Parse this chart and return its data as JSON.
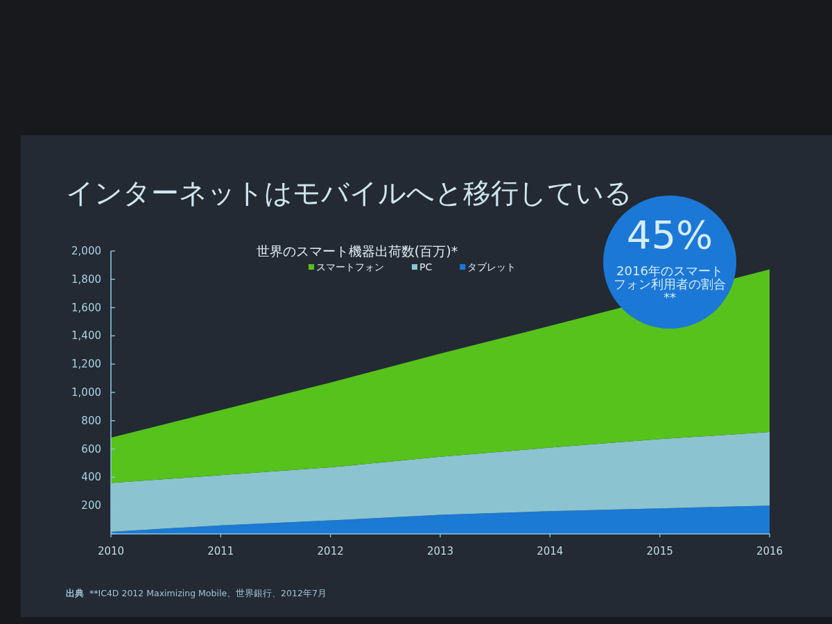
{
  "chart_data": {
    "type": "area",
    "title": "インターネットはモバイルへと移行している",
    "subtitle": "世界のスマート機器出荷数(百万)*",
    "x": [
      2010,
      2011,
      2012,
      2013,
      2014,
      2015,
      2016
    ],
    "xlim": [
      2010,
      2016
    ],
    "xticks": [
      2010,
      2011,
      2012,
      2013,
      2014,
      2015,
      2016
    ],
    "ylim": [
      0,
      2000
    ],
    "yticks": [
      {
        "value": 0,
        "label": null
      },
      200,
      400,
      600,
      800,
      {
        "value": 1000,
        "label": "1,000"
      },
      {
        "value": 1200,
        "label": "1,200"
      },
      {
        "value": 1400,
        "label": "1,400"
      },
      {
        "value": 1600,
        "label": "1,600"
      },
      {
        "value": 1800,
        "label": "1,800"
      },
      {
        "value": 2000,
        "label": "2,000"
      }
    ],
    "stacked": true,
    "legend": "top",
    "series": [
      {
        "name": "タブレット",
        "color": "#1a7ad4",
        "values": [
          15,
          60,
          95,
          135,
          160,
          180,
          200
        ]
      },
      {
        "name": "PC",
        "color": "#8bc3d1",
        "values": [
          345,
          355,
          375,
          410,
          450,
          490,
          520
        ]
      },
      {
        "name": "スマートフォン",
        "color": "#56c21b",
        "values": [
          320,
          460,
          600,
          730,
          860,
          null,
          1150
        ]
      }
    ],
    "annotations": [
      "45%",
      "2016年のスマートフォン利用者の割合**",
      "出典",
      "**IC4D 2012 Maximizing Mobile、世界銀行、2012年7月"
    ]
  }
}
